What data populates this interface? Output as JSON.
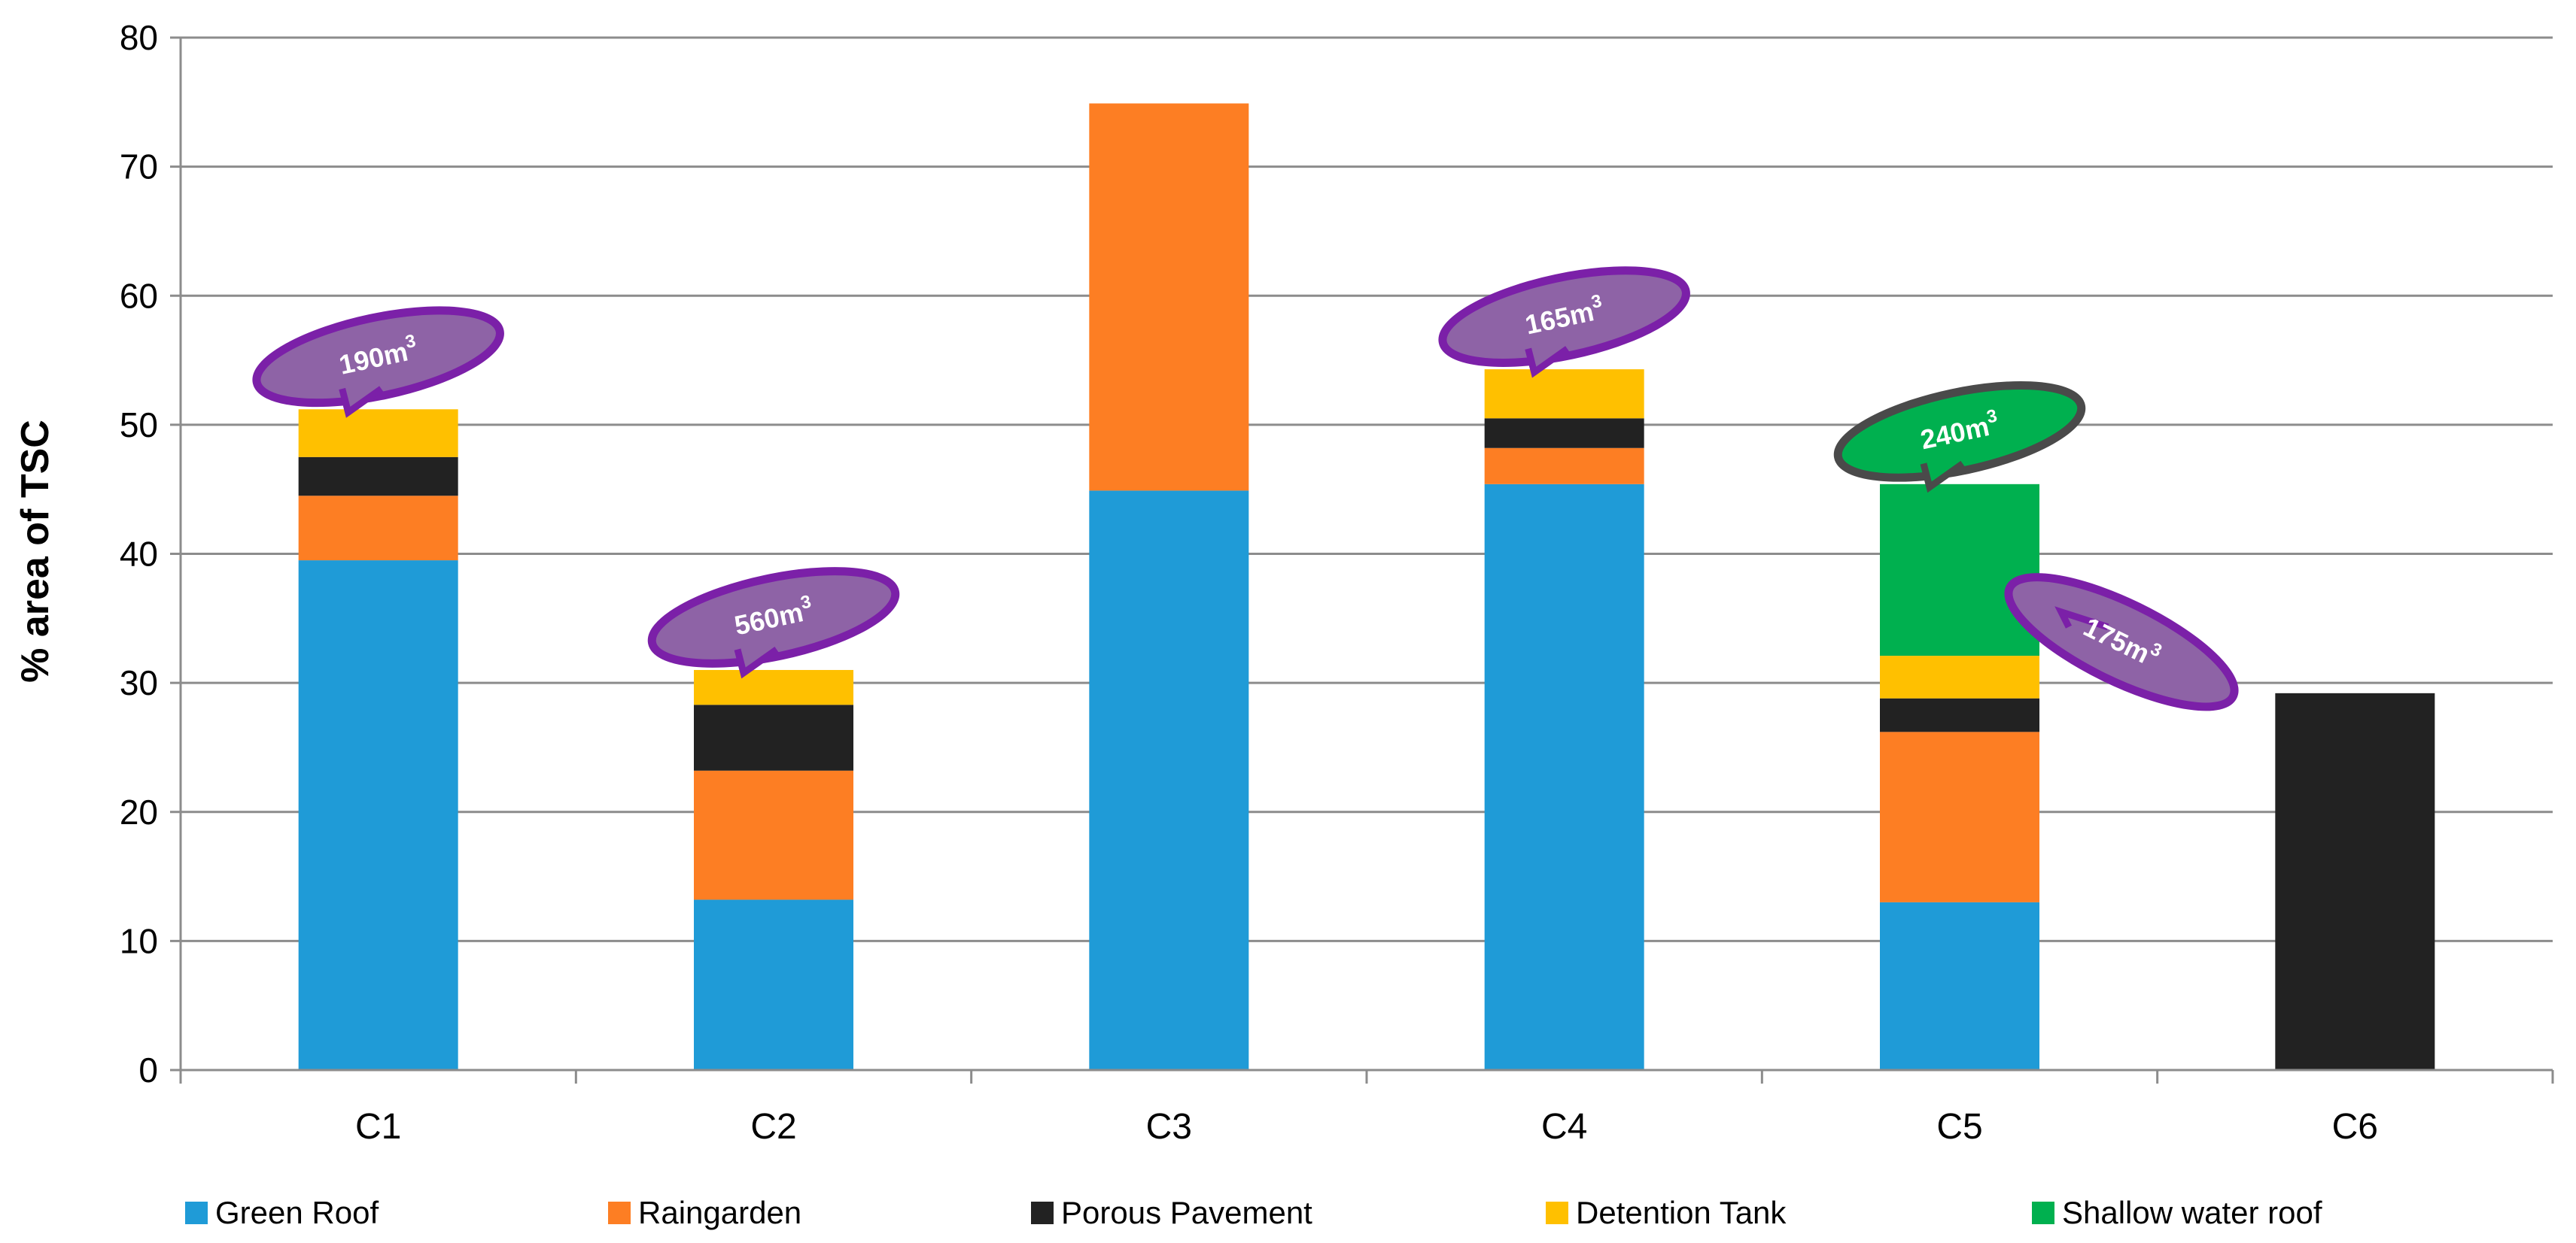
{
  "chart_data": {
    "type": "bar",
    "stacked": true,
    "title": "",
    "xlabel": "",
    "ylabel": "% area of TSC",
    "ylim": [
      0,
      80
    ],
    "yticks": [
      0,
      10,
      20,
      30,
      40,
      50,
      60,
      70,
      80
    ],
    "grid": true,
    "legend_position": "bottom",
    "categories": [
      "C1",
      "C2",
      "C3",
      "C4",
      "C5",
      "C6"
    ],
    "series": [
      {
        "name": "Green Roof",
        "color": "#1f9bd7",
        "values": [
          39.5,
          13.2,
          44.9,
          45.4,
          13.0,
          0
        ]
      },
      {
        "name": "Raingarden",
        "color": "#fd7e23",
        "values": [
          5.0,
          10.0,
          30.0,
          2.8,
          13.2,
          0
        ]
      },
      {
        "name": "Porous Pavement",
        "color": "#222222",
        "values": [
          3.0,
          5.1,
          0,
          2.3,
          2.6,
          29.2
        ]
      },
      {
        "name": "Detention Tank",
        "color": "#ffc000",
        "values": [
          3.7,
          2.7,
          0,
          3.8,
          3.3,
          0
        ]
      },
      {
        "name": "Shallow water roof",
        "color": "#00b04f",
        "values": [
          0,
          0,
          0,
          0,
          13.3,
          0
        ]
      }
    ],
    "annotations": [
      {
        "category": "C1",
        "value_main": "190m",
        "sup": "3",
        "style": "purple",
        "anchor_value": 51.2
      },
      {
        "category": "C2",
        "value_main": "560m",
        "sup": "3",
        "style": "purple",
        "anchor_value": 31.0
      },
      {
        "category": "C4",
        "value_main": "165m",
        "sup": "3",
        "style": "purple",
        "anchor_value": 54.3
      },
      {
        "category": "C5",
        "value_main": "240m",
        "sup": "3",
        "style": "green",
        "anchor_value": 45.4
      },
      {
        "category": "C5",
        "value_main": "175m",
        "sup": "3",
        "style": "purple",
        "anchor_value": 32.0,
        "side": "right"
      }
    ]
  },
  "callout_styles": {
    "purple": {
      "fill": "#8e63a6",
      "stroke": "#7b20a8"
    },
    "green": {
      "fill": "#00b04f",
      "stroke": "#4a4a4a"
    }
  }
}
